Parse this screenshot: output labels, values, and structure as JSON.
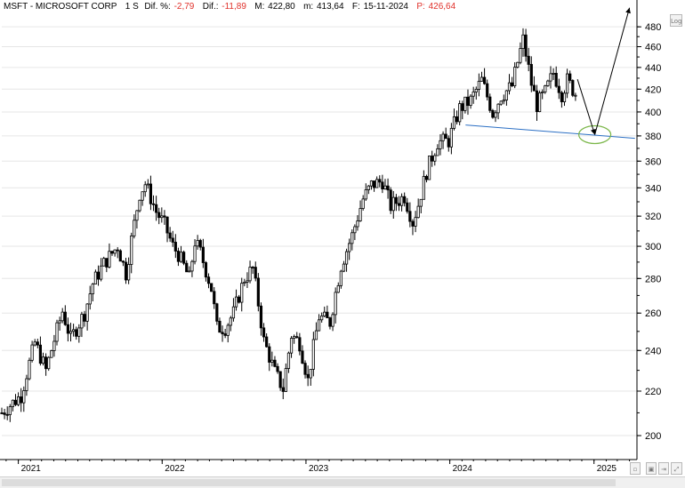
{
  "header": {
    "symbol": "MSFT - MICROSOFT CORP",
    "timeframe": "1 S",
    "dif_pct_label": "Dif. %:",
    "dif_pct_value": "-2,79",
    "dif_label": "Dif.:",
    "dif_value": "-11,89",
    "m_label": "M:",
    "m_value": "422,80",
    "m_low_label": "m:",
    "m_low_value": "413,64",
    "f_label": "F:",
    "f_value": "15-11-2024",
    "p_label": "P:",
    "p_value": "426,64"
  },
  "buttons": {
    "log": "Log"
  },
  "colors": {
    "candle": "#000000",
    "support_line": "#2b6fc4",
    "ellipse": "#7ab648",
    "arrow": "#000000",
    "negative_text": "#e0302a",
    "grid": "#e6e6e6"
  },
  "chart_data": {
    "type": "candlestick",
    "x_axis_labels": [
      "2021",
      "2022",
      "2023",
      "2024",
      "2025"
    ],
    "y_axis_labels": [
      "200",
      "220",
      "240",
      "260",
      "280",
      "300",
      "320",
      "340",
      "360",
      "380",
      "400",
      "420",
      "440",
      "460",
      "480"
    ],
    "y_scale": "log",
    "ylim": [
      190,
      495
    ],
    "x_range": [
      "2020-11-20",
      "2025-04-20"
    ],
    "grid": "horizontal only",
    "weekly_close_path": [
      [
        "2020-11-20",
        210
      ],
      [
        "2021-01-08",
        218
      ],
      [
        "2021-02-12",
        244
      ],
      [
        "2021-03-12",
        230
      ],
      [
        "2021-04-23",
        261
      ],
      [
        "2021-05-14",
        246
      ],
      [
        "2021-06-18",
        260
      ],
      [
        "2021-07-09",
        277
      ],
      [
        "2021-08-06",
        289
      ],
      [
        "2021-09-10",
        300
      ],
      [
        "2021-10-01",
        283
      ],
      [
        "2021-11-05",
        336
      ],
      [
        "2021-11-19",
        343
      ],
      [
        "2021-12-17",
        323
      ],
      [
        "2022-01-07",
        314
      ],
      [
        "2022-01-28",
        300
      ],
      [
        "2022-02-11",
        295
      ],
      [
        "2022-03-11",
        280
      ],
      [
        "2022-03-25",
        303
      ],
      [
        "2022-04-08",
        296
      ],
      [
        "2022-05-06",
        274
      ],
      [
        "2022-05-20",
        252
      ],
      [
        "2022-06-10",
        252
      ],
      [
        "2022-07-01",
        260
      ],
      [
        "2022-07-29",
        280
      ],
      [
        "2022-08-19",
        286
      ],
      [
        "2022-09-16",
        245
      ],
      [
        "2022-10-14",
        229
      ],
      [
        "2022-11-04",
        221
      ],
      [
        "2022-11-25",
        248
      ],
      [
        "2022-12-16",
        244
      ],
      [
        "2023-01-06",
        225
      ],
      [
        "2023-02-03",
        258
      ],
      [
        "2023-03-03",
        255
      ],
      [
        "2023-03-31",
        288
      ],
      [
        "2023-04-28",
        307
      ],
      [
        "2023-05-26",
        332
      ],
      [
        "2023-06-16",
        342
      ],
      [
        "2023-07-14",
        345
      ],
      [
        "2023-08-04",
        327
      ],
      [
        "2023-09-08",
        334
      ],
      [
        "2023-09-29",
        316
      ],
      [
        "2023-10-13",
        328
      ],
      [
        "2023-11-03",
        352
      ],
      [
        "2023-12-01",
        375
      ],
      [
        "2023-12-29",
        376
      ],
      [
        "2024-01-26",
        403
      ],
      [
        "2024-02-23",
        410
      ],
      [
        "2024-03-22",
        428
      ],
      [
        "2024-04-19",
        399
      ],
      [
        "2024-05-10",
        414
      ],
      [
        "2024-06-07",
        423
      ],
      [
        "2024-07-05",
        467
      ],
      [
        "2024-07-26",
        425
      ],
      [
        "2024-08-09",
        406
      ],
      [
        "2024-08-30",
        417
      ],
      [
        "2024-09-20",
        435
      ],
      [
        "2024-10-11",
        416
      ],
      [
        "2024-10-25",
        428
      ],
      [
        "2024-11-15",
        416
      ]
    ],
    "annotations": {
      "support_line": {
        "from": [
          "2024-02-10",
          389
        ],
        "to": [
          "2025-04-15",
          378
        ]
      },
      "target_ellipse_center": [
        "2025-01-03",
        381
      ],
      "arrow_down": {
        "from": [
          "2024-11-20",
          429
        ],
        "to": [
          "2025-01-03",
          381
        ]
      },
      "arrow_up": {
        "from": [
          "2025-01-03",
          381
        ],
        "to": [
          "2025-04-01",
          500
        ]
      }
    }
  }
}
